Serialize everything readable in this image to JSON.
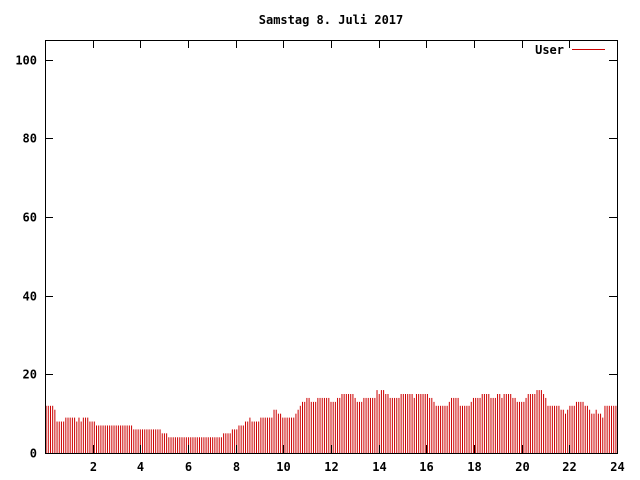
{
  "chart_data": {
    "type": "bar",
    "title": "Samstag 8. Juli 2017",
    "xlabel": "",
    "ylabel": "",
    "xlim": [
      0,
      24
    ],
    "ylim": [
      0,
      105
    ],
    "x_ticks": [
      2,
      4,
      6,
      8,
      10,
      12,
      14,
      16,
      18,
      20,
      22,
      24
    ],
    "y_ticks": [
      0,
      20,
      40,
      60,
      80,
      100
    ],
    "grid": false,
    "legend": {
      "placement": "top-right",
      "entries": [
        "User"
      ]
    },
    "series": [
      {
        "name": "User",
        "color": "#cc0000",
        "values": [
          12,
          12,
          12,
          12,
          11,
          8,
          8,
          8,
          8,
          9,
          9,
          9,
          9,
          9,
          8,
          9,
          8,
          9,
          9,
          9,
          8,
          8,
          8,
          7,
          7,
          7,
          7,
          7,
          7,
          7,
          7,
          7,
          7,
          7,
          7,
          7,
          7,
          7,
          7,
          7,
          6,
          6,
          6,
          6,
          6,
          6,
          6,
          6,
          6,
          6,
          6,
          6,
          6,
          5,
          5,
          5,
          4,
          4,
          4,
          4,
          4,
          4,
          4,
          4,
          4,
          4,
          4,
          4,
          4,
          4,
          4,
          4,
          4,
          4,
          4,
          4,
          4,
          4,
          4,
          4,
          4,
          5,
          5,
          5,
          5,
          6,
          6,
          6,
          7,
          7,
          7,
          8,
          8,
          9,
          8,
          8,
          8,
          8,
          9,
          9,
          9,
          9,
          9,
          9,
          11,
          11,
          10,
          10,
          9,
          9,
          9,
          9,
          9,
          9,
          10,
          11,
          12,
          13,
          13,
          14,
          14,
          13,
          13,
          13,
          14,
          14,
          14,
          14,
          14,
          14,
          13,
          13,
          13,
          14,
          14,
          15,
          15,
          15,
          15,
          15,
          15,
          14,
          13,
          13,
          13,
          14,
          14,
          14,
          14,
          14,
          14,
          16,
          15,
          16,
          16,
          15,
          15,
          14,
          14,
          14,
          14,
          14,
          15,
          15,
          15,
          15,
          15,
          15,
          14,
          15,
          15,
          15,
          15,
          15,
          15,
          14,
          14,
          13,
          12,
          12,
          12,
          12,
          12,
          12,
          13,
          14,
          14,
          14,
          14,
          12,
          12,
          12,
          12,
          12,
          13,
          14,
          14,
          14,
          14,
          15,
          15,
          15,
          15,
          14,
          14,
          14,
          15,
          15,
          14,
          15,
          15,
          15,
          15,
          14,
          14,
          13,
          13,
          13,
          13,
          14,
          15,
          15,
          15,
          15,
          16,
          16,
          16,
          15,
          14,
          12,
          12,
          12,
          12,
          12,
          12,
          11,
          11,
          10,
          11,
          12,
          12,
          12,
          13,
          13,
          13,
          13,
          12,
          12,
          11,
          10,
          10,
          11,
          10,
          10,
          9,
          12,
          12,
          12,
          12,
          12,
          12
        ]
      }
    ]
  }
}
